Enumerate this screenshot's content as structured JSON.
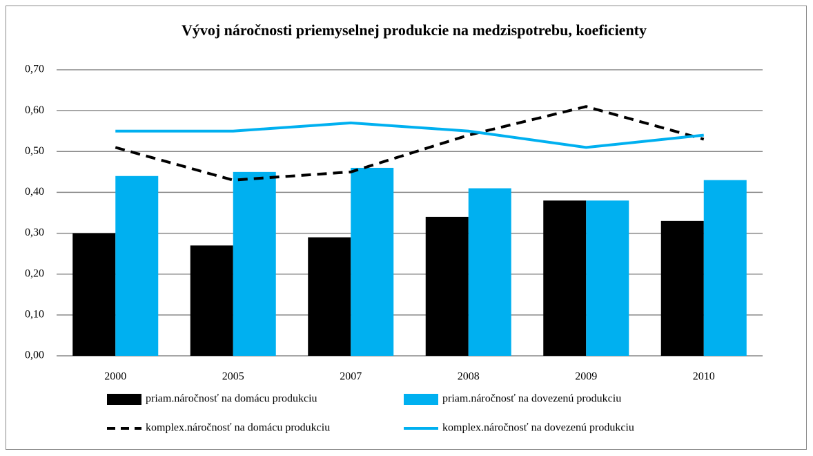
{
  "chart_data": {
    "type": "bar",
    "title": "Vývoj náročnosti priemyselnej produkcie na medzispotrebu, koeficienty",
    "categories": [
      "2000",
      "2005",
      "2007",
      "2008",
      "2009",
      "2010"
    ],
    "series": [
      {
        "name": "priam.náročnosť na domácu produkciu",
        "type": "bar",
        "color": "#000000",
        "values": [
          0.3,
          0.27,
          0.29,
          0.34,
          0.38,
          0.33
        ]
      },
      {
        "name": "priam.náročnosť na dovezenú produkciu",
        "type": "bar",
        "color": "#00b0f0",
        "values": [
          0.44,
          0.45,
          0.46,
          0.41,
          0.38,
          0.43
        ]
      },
      {
        "name": "komplex.náročnosť na domácu produkciu",
        "type": "line",
        "dash": true,
        "color": "#000000",
        "values": [
          0.51,
          0.43,
          0.45,
          0.54,
          0.61,
          0.53
        ]
      },
      {
        "name": "komplex.náročnosť na dovezenú produkciu",
        "type": "line",
        "dash": false,
        "color": "#00b0f0",
        "values": [
          0.55,
          0.55,
          0.57,
          0.55,
          0.51,
          0.54
        ]
      }
    ],
    "ylim": [
      0,
      0.7
    ],
    "yticks": [
      {
        "value": 0,
        "label": "0,00"
      },
      {
        "value": 0.1,
        "label": "0,10"
      },
      {
        "value": 0.2,
        "label": "0,20"
      },
      {
        "value": 0.3,
        "label": "0,30"
      },
      {
        "value": 0.4,
        "label": "0,40"
      },
      {
        "value": 0.5,
        "label": "0,50"
      },
      {
        "value": 0.6,
        "label": "0,60"
      },
      {
        "value": 0.7,
        "label": "0,70"
      }
    ],
    "grid": true
  }
}
